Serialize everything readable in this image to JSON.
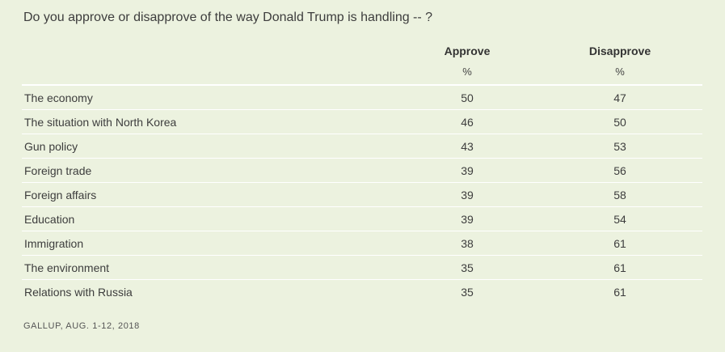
{
  "question": "Do you approve or disapprove of the way Donald Trump is handling -- ?",
  "source": "GALLUP, AUG. 1-12, 2018",
  "chart_data": {
    "type": "table",
    "columns": [
      "Approve",
      "Disapprove"
    ],
    "units": [
      "%",
      "%"
    ],
    "rows": [
      {
        "label": "The economy",
        "approve": "50",
        "disapprove": "47"
      },
      {
        "label": "The situation with North Korea",
        "approve": "46",
        "disapprove": "50"
      },
      {
        "label": "Gun policy",
        "approve": "43",
        "disapprove": "53"
      },
      {
        "label": "Foreign trade",
        "approve": "39",
        "disapprove": "56"
      },
      {
        "label": "Foreign affairs",
        "approve": "39",
        "disapprove": "58"
      },
      {
        "label": "Education",
        "approve": "39",
        "disapprove": "54"
      },
      {
        "label": "Immigration",
        "approve": "38",
        "disapprove": "61"
      },
      {
        "label": "The environment",
        "approve": "35",
        "disapprove": "61"
      },
      {
        "label": "Relations with Russia",
        "approve": "35",
        "disapprove": "61"
      }
    ]
  }
}
